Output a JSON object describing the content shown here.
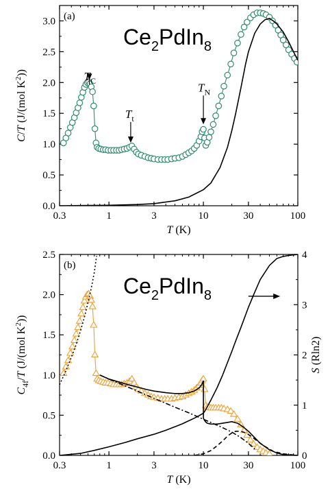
{
  "chart_data": [
    {
      "type": "scatter",
      "panel_label": "(a)",
      "compound": {
        "base1": "Ce",
        "sub1": "2",
        "base2": "PdIn",
        "sub2": "8"
      },
      "xlabel": {
        "var": "T",
        "unit": " (K)"
      },
      "ylabel": {
        "var1": "C",
        "sep": "/",
        "var2": "T",
        "unit_pre": " (J/(mol K",
        "sup": "2",
        "unit_post": "))"
      },
      "xscale": "log",
      "xlim": [
        0.3,
        100
      ],
      "ylim": [
        0.0,
        3.25
      ],
      "xticks": [
        0.3,
        1,
        3,
        10,
        30,
        100
      ],
      "xtick_labels": [
        "0.3",
        "1",
        "3",
        "10",
        "30",
        "100"
      ],
      "yticks": [
        0.0,
        0.5,
        1.0,
        1.5,
        2.0,
        2.5,
        3.0
      ],
      "ytick_labels": [
        "0.0",
        "0.5",
        "1.0",
        "1.5",
        "2.0",
        "2.5",
        "3.0"
      ],
      "annotations": [
        {
          "var": "T",
          "sub": "C",
          "x": 0.62,
          "y_arrow_top": 1.88,
          "y_arrow_bottom": 2.02
        },
        {
          "var": "T",
          "sub": "t",
          "x": 1.7,
          "y_arrow_top": 1.27,
          "y_arrow_bottom": 1.0
        },
        {
          "var": "T",
          "sub": "N",
          "x": 10.0,
          "y_arrow_top": 1.7,
          "y_arrow_bottom": 1.3
        }
      ],
      "series": [
        {
          "marker": "circle",
          "color": "#2e8b6e",
          "x": [
            0.33,
            0.35,
            0.37,
            0.39,
            0.41,
            0.43,
            0.45,
            0.47,
            0.49,
            0.51,
            0.53,
            0.55,
            0.57,
            0.59,
            0.61,
            0.63,
            0.65,
            0.67,
            0.69,
            0.71,
            0.73,
            0.75,
            0.78,
            0.82,
            0.87,
            0.92,
            0.98,
            1.05,
            1.12,
            1.2,
            1.28,
            1.36,
            1.45,
            1.55,
            1.65,
            1.75,
            1.85,
            1.95,
            2.05,
            2.2,
            2.4,
            2.6,
            2.8,
            3.0,
            3.3,
            3.6,
            3.9,
            4.2,
            4.6,
            5.0,
            5.5,
            6.0,
            6.5,
            7.0,
            7.5,
            8.0,
            8.5,
            9.0,
            9.4,
            9.7,
            10.0,
            10.3,
            10.6,
            11.0,
            11.5,
            12.0,
            12.7,
            13.5,
            14.5,
            15.5,
            16.5,
            18,
            19.5,
            21,
            23,
            25,
            27,
            29,
            31.5,
            34,
            37,
            40,
            43,
            46,
            50,
            54,
            58,
            62,
            66,
            70,
            75,
            80,
            86,
            92,
            98
          ],
          "y": [
            1.02,
            1.1,
            1.18,
            1.27,
            1.35,
            1.43,
            1.51,
            1.59,
            1.67,
            1.76,
            1.84,
            1.92,
            1.97,
            2.0,
            2.01,
            1.98,
            1.93,
            1.85,
            1.62,
            1.25,
            1.02,
            0.95,
            0.93,
            0.92,
            0.91,
            0.91,
            0.9,
            0.9,
            0.9,
            0.9,
            0.9,
            0.91,
            0.92,
            0.93,
            0.95,
            0.97,
            0.92,
            0.87,
            0.84,
            0.82,
            0.8,
            0.78,
            0.77,
            0.76,
            0.75,
            0.75,
            0.75,
            0.75,
            0.76,
            0.77,
            0.78,
            0.8,
            0.83,
            0.86,
            0.89,
            0.93,
            0.98,
            1.05,
            1.12,
            1.2,
            1.24,
            1.1,
            0.98,
            1.03,
            1.11,
            1.2,
            1.32,
            1.46,
            1.62,
            1.78,
            1.94,
            2.12,
            2.3,
            2.48,
            2.64,
            2.78,
            2.9,
            2.98,
            3.05,
            3.1,
            3.13,
            3.13,
            3.12,
            3.1,
            3.06,
            3.0,
            2.93,
            2.85,
            2.77,
            2.69,
            2.61,
            2.53,
            2.46,
            2.39,
            2.33
          ]
        },
        {
          "marker": "none",
          "style": "solid",
          "color": "#000000",
          "x": [
            0.3,
            0.5,
            1,
            2,
            3,
            5,
            7,
            10,
            12,
            15,
            18,
            20,
            22,
            25,
            28,
            30,
            35,
            40,
            45,
            50,
            55,
            60,
            70,
            80,
            90,
            100
          ],
          "y": [
            0.0,
            0.003,
            0.008,
            0.02,
            0.035,
            0.08,
            0.14,
            0.26,
            0.37,
            0.62,
            0.95,
            1.22,
            1.5,
            1.92,
            2.3,
            2.5,
            2.8,
            2.95,
            3.02,
            3.04,
            3.0,
            2.95,
            2.82,
            2.66,
            2.5,
            2.36
          ]
        }
      ]
    },
    {
      "type": "scatter",
      "panel_label": "(b)",
      "compound": {
        "base1": "Ce",
        "sub1": "2",
        "base2": "PdIn",
        "sub2": "8"
      },
      "xlabel": {
        "var": "T",
        "unit": " (K)"
      },
      "ylabel": {
        "var1": "C",
        "sub1": "4f",
        "sep": "/",
        "var2": "T",
        "unit_pre": " (J/(mol K",
        "sup": "2",
        "unit_post": "))"
      },
      "y2label": {
        "var": "S",
        "unit": " (Rln2)"
      },
      "xscale": "log",
      "xlim": [
        0.3,
        100
      ],
      "ylim": [
        0.0,
        2.5
      ],
      "y2lim": [
        0,
        4
      ],
      "xticks": [
        0.3,
        1,
        3,
        10,
        30,
        100
      ],
      "xtick_labels": [
        "0.3",
        "1",
        "3",
        "10",
        "30",
        "100"
      ],
      "yticks": [
        0.0,
        0.5,
        1.0,
        1.5,
        2.0,
        2.5
      ],
      "ytick_labels": [
        "0.0",
        "0.5",
        "1.0",
        "1.5",
        "2.0",
        "2.5"
      ],
      "y2ticks": [
        0,
        1,
        2,
        3,
        4
      ],
      "y2tick_labels": [
        "0",
        "1",
        "2",
        "3",
        "4"
      ],
      "arrow": {
        "direction": "right",
        "x_start": 30,
        "x_end": 65,
        "y": 1.98
      },
      "series": [
        {
          "marker": "triangle",
          "color": "#f0a030",
          "x": [
            0.33,
            0.35,
            0.37,
            0.39,
            0.41,
            0.43,
            0.45,
            0.47,
            0.49,
            0.51,
            0.53,
            0.55,
            0.57,
            0.59,
            0.61,
            0.63,
            0.65,
            0.67,
            0.69,
            0.71,
            0.73,
            0.75,
            0.78,
            0.82,
            0.87,
            0.92,
            0.98,
            1.05,
            1.12,
            1.2,
            1.28,
            1.36,
            1.45,
            1.55,
            1.65,
            1.75,
            1.85,
            1.95,
            2.05,
            2.2,
            2.4,
            2.6,
            2.8,
            3.0,
            3.3,
            3.6,
            3.9,
            4.2,
            4.6,
            5.0,
            5.5,
            6.0,
            6.5,
            7.0,
            7.5,
            8.0,
            8.5,
            9.0,
            9.4,
            9.7,
            10.0,
            10.3,
            10.6,
            11.0,
            11.5,
            12.0,
            12.7,
            13.5,
            14.5,
            15.5,
            16.5,
            18,
            19.5,
            21,
            23,
            25,
            27,
            29,
            31.5,
            34,
            37,
            40,
            43,
            46,
            50
          ],
          "y": [
            1.02,
            1.1,
            1.18,
            1.27,
            1.35,
            1.43,
            1.51,
            1.59,
            1.67,
            1.76,
            1.84,
            1.92,
            1.97,
            2.0,
            2.01,
            1.98,
            1.93,
            1.85,
            1.62,
            1.25,
            1.02,
            0.95,
            0.93,
            0.92,
            0.91,
            0.9,
            0.9,
            0.89,
            0.88,
            0.88,
            0.88,
            0.88,
            0.89,
            0.9,
            0.92,
            0.95,
            0.9,
            0.85,
            0.82,
            0.8,
            0.77,
            0.75,
            0.73,
            0.72,
            0.71,
            0.7,
            0.7,
            0.7,
            0.7,
            0.71,
            0.72,
            0.73,
            0.75,
            0.77,
            0.79,
            0.81,
            0.84,
            0.87,
            0.9,
            0.93,
            0.95,
            0.82,
            0.62,
            0.6,
            0.6,
            0.59,
            0.59,
            0.59,
            0.59,
            0.59,
            0.58,
            0.57,
            0.55,
            0.51,
            0.45,
            0.38,
            0.31,
            0.25,
            0.19,
            0.14,
            0.1,
            0.07,
            0.05,
            0.03,
            0.02
          ]
        },
        {
          "marker": "none",
          "style": "solid",
          "color": "#000000",
          "x": [
            0.8,
            1,
            1.3,
            1.7,
            2,
            2.5,
            3,
            4,
            5,
            6,
            7,
            8,
            9,
            9.6,
            10.0,
            10.0,
            10.5,
            11,
            12,
            13,
            14,
            16,
            18,
            20,
            23,
            26,
            30,
            35,
            40,
            50,
            60,
            70,
            85,
            100
          ],
          "y": [
            1.0,
            0.95,
            0.91,
            0.87,
            0.85,
            0.82,
            0.8,
            0.78,
            0.77,
            0.77,
            0.78,
            0.8,
            0.84,
            0.88,
            0.93,
            0.46,
            0.42,
            0.4,
            0.39,
            0.39,
            0.39,
            0.4,
            0.41,
            0.42,
            0.4,
            0.36,
            0.3,
            0.22,
            0.15,
            0.07,
            0.03,
            0.01,
            0.005,
            0.0
          ]
        },
        {
          "marker": "none",
          "style": "dashdot",
          "color": "#000000",
          "x": [
            0.8,
            1,
            2,
            3,
            5,
            7,
            10,
            15,
            20,
            25,
            30,
            35
          ],
          "y": [
            1.0,
            0.95,
            0.8,
            0.71,
            0.6,
            0.53,
            0.45,
            0.36,
            0.29,
            0.22,
            0.15,
            0.08
          ]
        },
        {
          "marker": "none",
          "style": "dashed",
          "color": "#000000",
          "x": [
            8,
            10,
            12,
            14,
            16,
            18,
            20,
            22,
            25,
            28,
            32,
            38,
            45,
            55,
            70,
            100
          ],
          "y": [
            0.0,
            0.02,
            0.06,
            0.12,
            0.18,
            0.24,
            0.28,
            0.3,
            0.3,
            0.28,
            0.24,
            0.17,
            0.11,
            0.05,
            0.02,
            0.0
          ]
        },
        {
          "marker": "none",
          "style": "dotted",
          "color": "#000000",
          "x": [
            0.3,
            0.35,
            0.4,
            0.45,
            0.5,
            0.55,
            0.6,
            0.65,
            0.7,
            0.74
          ],
          "y": [
            0.88,
            1.05,
            1.22,
            1.38,
            1.55,
            1.72,
            1.9,
            2.08,
            2.28,
            2.48
          ]
        },
        {
          "marker": "none",
          "style": "solid",
          "color": "#000000",
          "axis": "y2",
          "x": [
            0.3,
            0.5,
            0.7,
            1,
            1.5,
            2,
            3,
            4,
            5,
            6,
            7,
            8,
            9,
            10,
            10.5,
            12,
            14,
            16,
            18,
            20,
            22,
            25,
            30,
            35,
            40,
            50,
            60,
            70,
            80,
            100
          ],
          "y": [
            0.0,
            0.04,
            0.1,
            0.17,
            0.26,
            0.33,
            0.42,
            0.5,
            0.57,
            0.63,
            0.69,
            0.74,
            0.79,
            0.84,
            0.9,
            1.1,
            1.35,
            1.6,
            1.85,
            2.07,
            2.28,
            2.55,
            2.95,
            3.25,
            3.5,
            3.78,
            3.92,
            3.96,
            3.98,
            4.0
          ]
        }
      ]
    }
  ]
}
